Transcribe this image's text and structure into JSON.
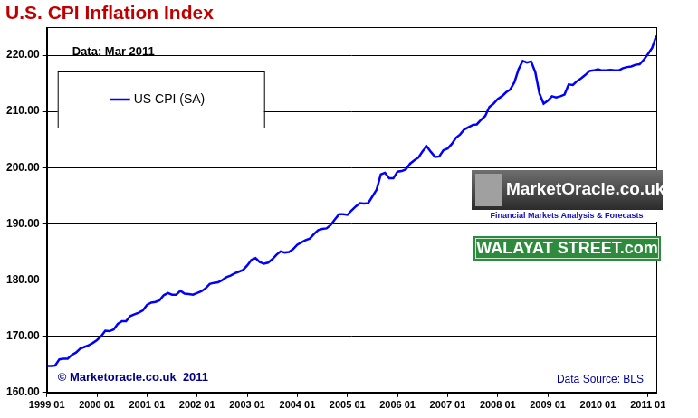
{
  "chart_data": {
    "type": "line",
    "title": "U.S. CPI Inflation Index",
    "annotations": [
      "Data: Mar 2011",
      "© Marketoracle.co.uk  2011",
      "Data Source: BLS",
      "MarketOracle.co.uk",
      "Financial Markets Analysis & Forecasts",
      "WALAYAT STREET.com"
    ],
    "legend": "upper left",
    "grid": true,
    "ylim": [
      160,
      225
    ],
    "yticks": [
      {
        "value": 160,
        "label": "160.00"
      },
      {
        "value": 170,
        "label": "170.00"
      },
      {
        "value": 180,
        "label": "180.00"
      },
      {
        "value": 190,
        "label": "190.00"
      },
      {
        "value": 200,
        "label": "200.00"
      },
      {
        "value": 210,
        "label": "210.00"
      },
      {
        "value": 220,
        "label": "220.00"
      }
    ],
    "categories": [
      "1999 01",
      null,
      null,
      null,
      null,
      null,
      null,
      null,
      null,
      null,
      null,
      null,
      "2000 01",
      null,
      null,
      null,
      null,
      null,
      null,
      null,
      null,
      null,
      null,
      null,
      "2001 01",
      null,
      null,
      null,
      null,
      null,
      null,
      null,
      null,
      null,
      null,
      null,
      "2002 01",
      null,
      null,
      null,
      null,
      null,
      null,
      null,
      null,
      null,
      null,
      null,
      "2003 01",
      null,
      null,
      null,
      null,
      null,
      null,
      null,
      null,
      null,
      null,
      null,
      "2004 01",
      null,
      null,
      null,
      null,
      null,
      null,
      null,
      null,
      null,
      null,
      null,
      "2005 01",
      null,
      null,
      null,
      null,
      null,
      null,
      null,
      null,
      null,
      null,
      null,
      "2006 01",
      null,
      null,
      null,
      null,
      null,
      null,
      null,
      null,
      null,
      null,
      null,
      "2007 01",
      null,
      null,
      null,
      null,
      null,
      null,
      null,
      null,
      null,
      null,
      null,
      "2008 01",
      null,
      null,
      null,
      null,
      null,
      null,
      null,
      null,
      null,
      null,
      null,
      "2009 01",
      null,
      null,
      null,
      null,
      null,
      null,
      null,
      null,
      null,
      null,
      null,
      "2010 01",
      null,
      null,
      null,
      null,
      null,
      null,
      null,
      null,
      null,
      null,
      null,
      "2011 01",
      null,
      null
    ],
    "series": [
      {
        "name": "US CPI (SA)",
        "color": "#0000ff",
        "values": [
          164.7,
          164.7,
          164.8,
          165.9,
          166.0,
          166.0,
          166.7,
          167.1,
          167.8,
          168.1,
          168.4,
          168.8,
          169.3,
          170.0,
          171.0,
          170.9,
          171.2,
          172.2,
          172.7,
          172.7,
          173.6,
          173.9,
          174.2,
          174.6,
          175.6,
          176.0,
          176.1,
          176.4,
          177.3,
          177.7,
          177.4,
          177.4,
          178.1,
          177.6,
          177.5,
          177.4,
          177.7,
          178.0,
          178.5,
          179.3,
          179.5,
          179.6,
          180.0,
          180.5,
          180.8,
          181.2,
          181.5,
          181.8,
          182.6,
          183.6,
          183.9,
          183.2,
          182.9,
          183.1,
          183.7,
          184.5,
          185.1,
          184.9,
          185.0,
          185.5,
          186.3,
          186.7,
          187.1,
          187.4,
          188.2,
          188.9,
          189.1,
          189.2,
          189.8,
          190.8,
          191.7,
          191.7,
          191.6,
          192.4,
          193.1,
          193.7,
          193.6,
          193.7,
          194.9,
          196.1,
          198.8,
          199.1,
          198.1,
          198.1,
          199.3,
          199.4,
          199.7,
          200.7,
          201.3,
          201.8,
          202.9,
          203.8,
          202.8,
          201.9,
          202.0,
          203.1,
          203.4,
          204.2,
          205.3,
          205.9,
          206.8,
          207.2,
          207.6,
          207.7,
          208.5,
          209.2,
          210.8,
          211.4,
          212.2,
          212.7,
          213.4,
          213.9,
          215.2,
          217.5,
          219.0,
          218.7,
          218.9,
          217.0,
          213.2,
          211.4,
          211.9,
          212.7,
          212.5,
          212.7,
          213.0,
          214.8,
          214.7,
          215.4,
          215.9,
          216.5,
          217.2,
          217.3,
          217.5,
          217.3,
          217.3,
          217.4,
          217.3,
          217.3,
          217.7,
          217.9,
          218.0,
          218.3,
          218.4,
          219.2,
          220.2,
          221.3,
          223.5
        ]
      }
    ]
  }
}
